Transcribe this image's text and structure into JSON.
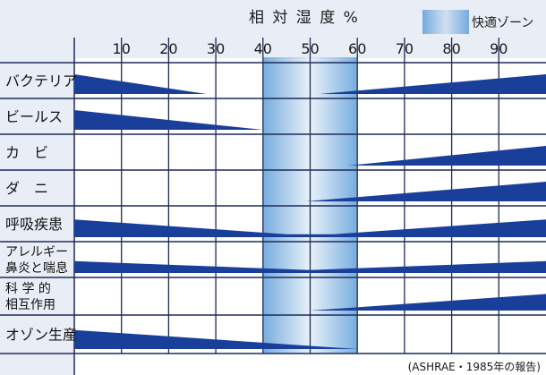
{
  "chart_data": {
    "type": "area",
    "title": "相 対 湿 度 %",
    "x_ticks": [
      10,
      20,
      30,
      40,
      50,
      60,
      70,
      80,
      90
    ],
    "xlim": [
      0,
      100
    ],
    "comfort_zone": {
      "label": "快適ゾーン",
      "range": [
        40,
        60
      ]
    },
    "source_note": "(ASHRAE・1985年の報告)",
    "colors": {
      "wedge": "#1a3f9a",
      "grid": "#1e2a5a",
      "zone": "#6fa8dc",
      "background": "#e9eef6"
    },
    "series": [
      {
        "name": "バクテリア",
        "label_lines": [
          "バクテリア"
        ],
        "points": [
          [
            0,
            1.0
          ],
          [
            28,
            0.0
          ],
          [
            52,
            0.0
          ],
          [
            100,
            1.0
          ]
        ]
      },
      {
        "name": "ビールス",
        "label_lines": [
          "ビールス"
        ],
        "points": [
          [
            0,
            1.0
          ],
          [
            40,
            0.0
          ],
          [
            100,
            0.0
          ]
        ]
      },
      {
        "name": "カビ",
        "label_lines": [
          "カ　ビ"
        ],
        "points": [
          [
            0,
            0.0
          ],
          [
            58,
            0.0
          ],
          [
            100,
            1.0
          ]
        ]
      },
      {
        "name": "ダニ",
        "label_lines": [
          "ダ　ニ"
        ],
        "points": [
          [
            0,
            0.0
          ],
          [
            49,
            0.0
          ],
          [
            100,
            1.0
          ]
        ]
      },
      {
        "name": "呼吸疾患",
        "label_lines": [
          "呼吸疾患"
        ],
        "points": [
          [
            0,
            0.9
          ],
          [
            45,
            0.15
          ],
          [
            55,
            0.15
          ],
          [
            100,
            0.9
          ]
        ]
      },
      {
        "name": "アレルギー鼻炎と喘息",
        "label_lines": [
          "アレルギー",
          "鼻炎と喘息"
        ],
        "points": [
          [
            0,
            0.6
          ],
          [
            50,
            0.15
          ],
          [
            100,
            0.6
          ]
        ]
      },
      {
        "name": "科学的相互作用",
        "label_lines": [
          "科 学 的",
          "相互作用"
        ],
        "points": [
          [
            0,
            0.0
          ],
          [
            50,
            0.0
          ],
          [
            100,
            0.8
          ]
        ]
      },
      {
        "name": "オゾン生産",
        "label_lines": [
          "オゾン生産"
        ],
        "points": [
          [
            0,
            0.9
          ],
          [
            60,
            0.0
          ],
          [
            100,
            0.0
          ]
        ]
      }
    ]
  }
}
